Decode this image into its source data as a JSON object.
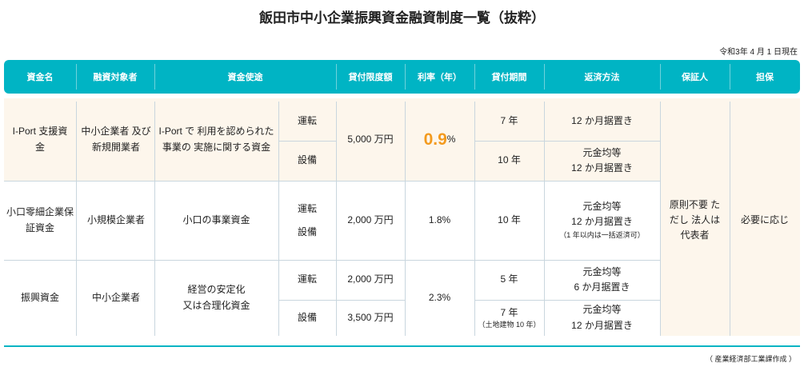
{
  "title": "飯田市中小企業振興資金融資制度一覧（抜粋）",
  "as_of": "令和3年 4 月 1 日現在",
  "headers": [
    "資金名",
    "融資対象者",
    "資金使途",
    "貸付限度額",
    "利率（年）",
    "貸付期間",
    "返済方法",
    "保証人",
    "担保"
  ],
  "rows": [
    {
      "name": "I-Port 支援資金",
      "target": "中小企業者 及び新規開業者",
      "use": "I-Port で 利用を認められた事業の 実施に関する資金",
      "types": [
        "運転",
        "設備"
      ],
      "limit": "5,000 万円",
      "rate_num": "0.9",
      "rate_unit": "%",
      "periods": [
        "7 年",
        "10 年"
      ],
      "repay": [
        "12 か月据置き",
        "元金均等",
        "12 か月据置き"
      ]
    },
    {
      "name": "小口零細企業保証資金",
      "target": "小規模企業者",
      "use": "小口の事業資金",
      "types": [
        "運転",
        "設備"
      ],
      "limit": "2,000 万円",
      "rate": "1.8%",
      "period": "10 年",
      "repay": [
        "元金均等",
        "12 か月据置き"
      ],
      "repay_note": "（1 年以内は一括返済可）"
    },
    {
      "name": "振興資金",
      "target": "中小企業者",
      "use_lines": [
        "経営の安定化",
        "又は合理化資金"
      ],
      "types": [
        "運転",
        "設備"
      ],
      "limits": [
        "2,000 万円",
        "3,500 万円"
      ],
      "rate": "2.3%",
      "periods": [
        "5 年",
        "7 年"
      ],
      "period_note": "（土地建物 10 年）",
      "repay": [
        "元金均等",
        "6 か月据置き",
        "元金均等",
        "12 か月据置き"
      ]
    }
  ],
  "guarantor_lines": [
    "原則不要 た",
    "だし 法人は",
    "代表者"
  ],
  "collateral": "必要に応じ",
  "footnote": "（ 産業経済部工業課作成 ）"
}
